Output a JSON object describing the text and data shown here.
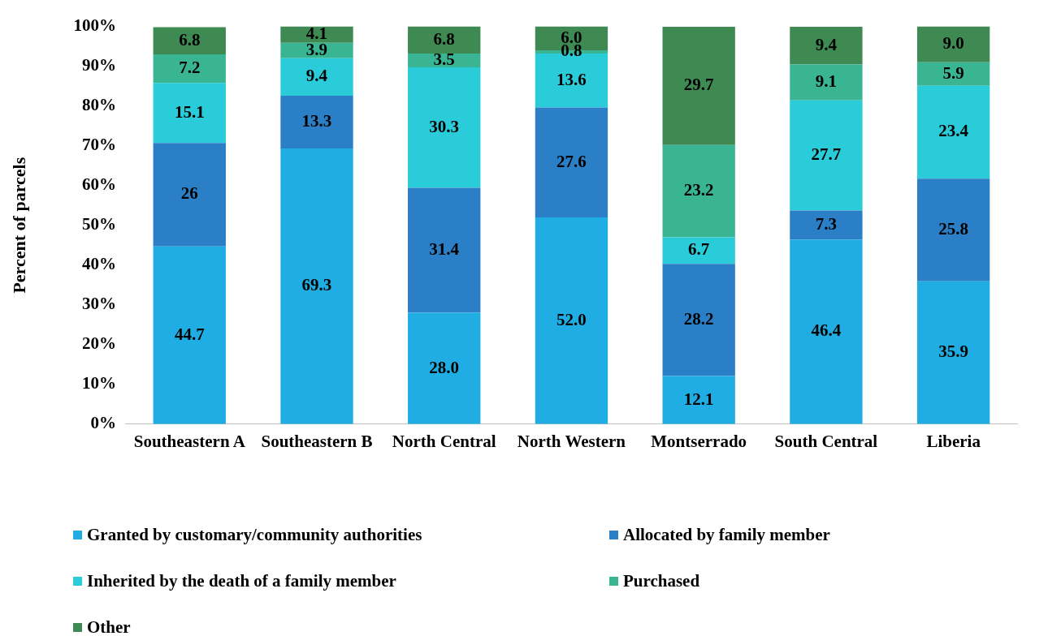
{
  "chart_data": {
    "type": "bar",
    "stacked": true,
    "ylabel": "Percent of parcels",
    "categories": [
      "Southeastern A",
      "Southeastern B",
      "North Central",
      "North Western",
      "Montserrado",
      "South Central",
      "Liberia"
    ],
    "series": [
      {
        "name": "Granted by customary/community authorities",
        "color": "#1fade3",
        "values": [
          44.7,
          69.3,
          28.0,
          52.0,
          12.1,
          46.4,
          35.9
        ],
        "value_labels": [
          "44.7",
          "69.3",
          "28.0",
          "52.0",
          "12.1",
          "46.4",
          "35.9"
        ]
      },
      {
        "name": "Allocated by family member",
        "color": "#2a7fc6",
        "values": [
          26,
          13.3,
          31.4,
          27.6,
          28.2,
          7.3,
          25.8
        ],
        "value_labels": [
          "26",
          "13.3",
          "31.4",
          "27.6",
          "28.2",
          "7.3",
          "25.8"
        ]
      },
      {
        "name": "Inherited by the death of a family member",
        "color": "#29ccd8",
        "values": [
          15.1,
          9.4,
          30.3,
          13.6,
          6.7,
          27.7,
          23.4
        ],
        "value_labels": [
          "15.1",
          "9.4",
          "30.3",
          "13.6",
          "6.7",
          "27.7",
          "23.4"
        ]
      },
      {
        "name": "Purchased",
        "color": "#3ab593",
        "values": [
          7.2,
          3.9,
          3.5,
          0.8,
          23.2,
          9.1,
          5.9
        ],
        "value_labels": [
          "7.2",
          "3.9",
          "3.5",
          "0.8",
          "23.2",
          "9.1",
          "5.9"
        ]
      },
      {
        "name": "Other",
        "color": "#3e8a52",
        "values": [
          6.8,
          4.1,
          6.8,
          6.0,
          29.7,
          9.4,
          9.0
        ],
        "value_labels": [
          "6.8",
          "4.1",
          "6.8",
          "6.0",
          "29.7",
          "9.4",
          "9.0"
        ]
      }
    ],
    "ylim": [
      0,
      100
    ],
    "yticks": [
      {
        "value": 0,
        "label": "0%"
      },
      {
        "value": 10,
        "label": "10%"
      },
      {
        "value": 20,
        "label": "20%"
      },
      {
        "value": 30,
        "label": "30%"
      },
      {
        "value": 40,
        "label": "40%"
      },
      {
        "value": 50,
        "label": "50%"
      },
      {
        "value": 60,
        "label": "60%"
      },
      {
        "value": 70,
        "label": "70%"
      },
      {
        "value": 80,
        "label": "80%"
      },
      {
        "value": 90,
        "label": "90%"
      },
      {
        "value": 100,
        "label": "100%"
      }
    ],
    "grid": false,
    "legend": "bottom"
  }
}
